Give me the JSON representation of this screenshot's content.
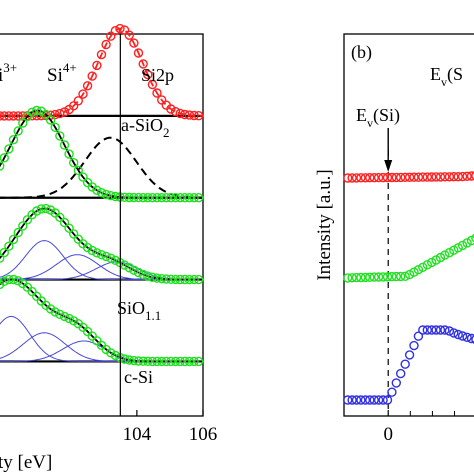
{
  "chart_data": [
    {
      "type": "line",
      "title": "",
      "xlabel": "ty [eV]",
      "ylabel": "",
      "xlim": [
        99.8,
        106
      ],
      "x_ticks": [
        "104",
        "106"
      ],
      "ylim": [
        0,
        7
      ],
      "grid": false,
      "legend": "none",
      "annotations": {
        "si3": "i",
        "si3_sup": "3+",
        "si4": "Si",
        "si4_sup": "4+",
        "spectrum": "Si2p",
        "label_asio2": "a-SiO",
        "label_asio2_sub": "2",
        "label_sio": "SiO",
        "label_sio_sub": "1.1",
        "label_csi": "c-Si"
      },
      "reference_line_x": 103.5,
      "series": [
        {
          "offset": 5.5,
          "color": "#ff2020",
          "peak": 103.5,
          "width": 1.05,
          "height": 1.6,
          "start": 100,
          "shoulder": 0.0
        },
        {
          "offset": 4.0,
          "color": "#20e020",
          "peak": 101.0,
          "width": 1.25,
          "height": 1.6,
          "start": 100,
          "shoulder": 0.0
        },
        {
          "offset": 2.5,
          "color": "#20e020",
          "peak": 101.2,
          "width": 1.35,
          "height": 1.3,
          "start": 100,
          "shoulder": 0.3
        },
        {
          "offset": 1.0,
          "color": "#20e020",
          "peak": 100.2,
          "width": 1.55,
          "height": 1.5,
          "start": 100,
          "shoulder": 0.5
        }
      ],
      "colors": {
        "fit": "#000000",
        "components": "#4a4ad8",
        "frame": "#000000"
      }
    },
    {
      "type": "line",
      "panel_label": "(b)",
      "title": "",
      "xlabel": "",
      "ylabel": "Intensity [a.u.]",
      "xlim": [
        -1.2,
        2.6
      ],
      "x_ticks": [
        "0"
      ],
      "annotations": {
        "ev_si": "E",
        "ev_si_sub": "v",
        "ev_si_rest": "(Si)",
        "ev_top": "E",
        "ev_top_sub": "v",
        "ev_top_rest": "(S"
      },
      "reference_line_x": 0,
      "series": [
        {
          "color": "#ff2020",
          "baseline": 0.18,
          "rise_at": 2.0,
          "amp": 0.15
        },
        {
          "color": "#20e020",
          "baseline": 0.0,
          "rise_at": 0.5,
          "amp": 0.55
        },
        {
          "color": "#3030e0",
          "baseline": 0.0,
          "rise_at": 0.0,
          "amp": 1.0
        }
      ]
    }
  ]
}
